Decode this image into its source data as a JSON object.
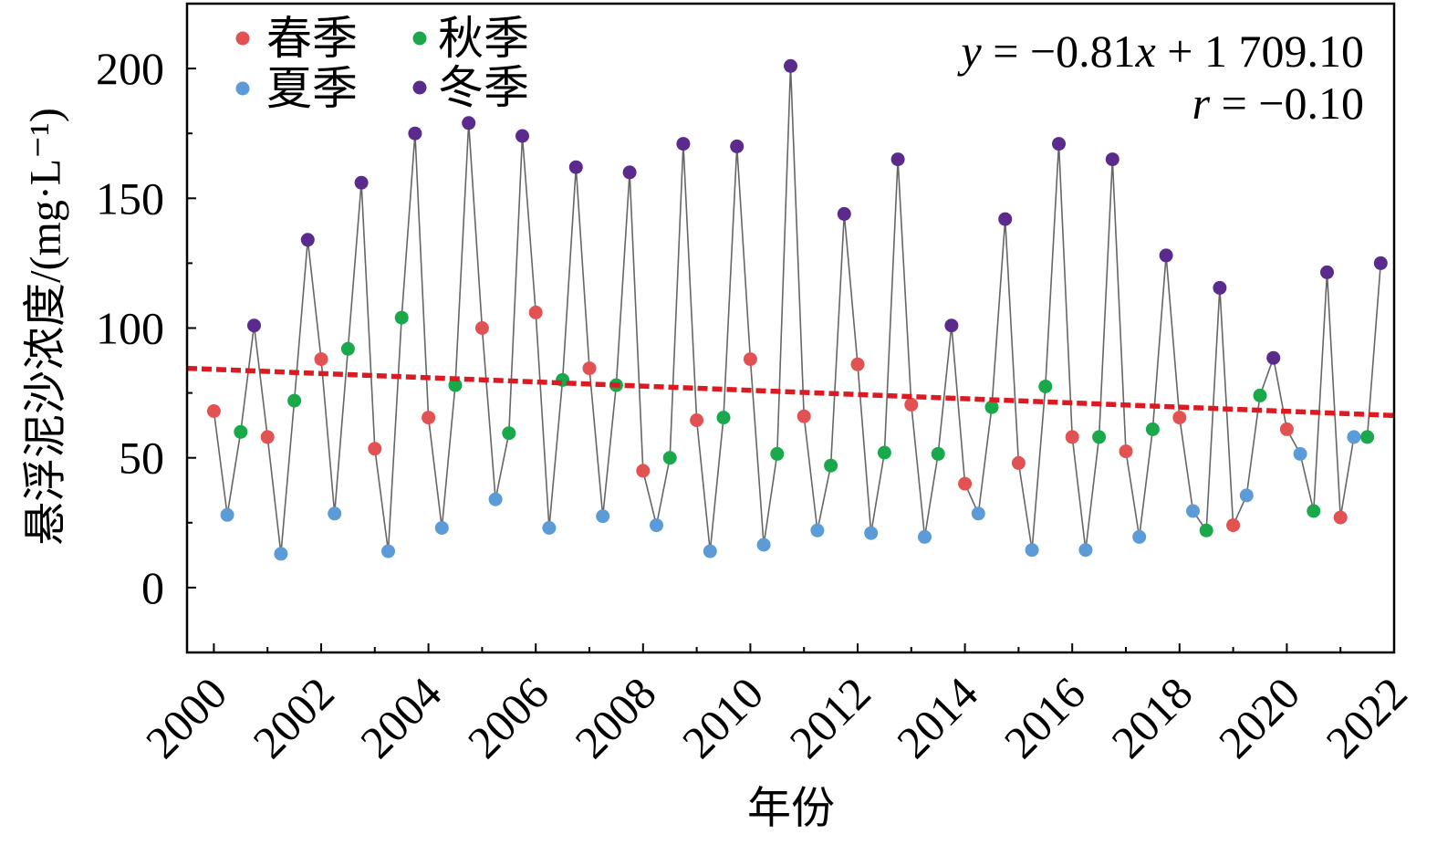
{
  "chart_data": {
    "type": "scatter",
    "xlabel": "年份",
    "ylabel": "悬浮泥沙浓度/(mg·L⁻¹)",
    "xlim": [
      1999.5,
      2022
    ],
    "ylim": [
      -25,
      225
    ],
    "xticks": [
      2000,
      2002,
      2004,
      2006,
      2008,
      2010,
      2012,
      2014,
      2016,
      2018,
      2020,
      2022
    ],
    "xticks_minor": [
      2001,
      2003,
      2005,
      2007,
      2009,
      2011,
      2013,
      2015,
      2017,
      2019,
      2021
    ],
    "yticks": [
      0,
      50,
      100,
      150,
      200
    ],
    "yticks_minor": [
      25,
      75,
      125,
      175
    ],
    "grid": false,
    "legend": {
      "placement": "top-left",
      "columns": 2
    },
    "connector_line_color": "#666666",
    "series": [
      {
        "name": "春季",
        "color": "#e25252",
        "x": [
          2000,
          2001,
          2002,
          2003,
          2004,
          2005,
          2006,
          2007,
          2008,
          2009,
          2010,
          2011,
          2012,
          2013,
          2014,
          2015,
          2016,
          2017,
          2018,
          2019,
          2020,
          2021
        ],
        "y": [
          68,
          58,
          88,
          53.5,
          65.5,
          100,
          106,
          84.5,
          45,
          64.5,
          88,
          66,
          86,
          70.5,
          40,
          48,
          58,
          52.5,
          65.5,
          24,
          61,
          27
        ]
      },
      {
        "name": "夏季",
        "color": "#5b9bd8",
        "x": [
          2000.25,
          2001.25,
          2002.25,
          2003.25,
          2004.25,
          2005.25,
          2006.25,
          2007.25,
          2008.25,
          2009.25,
          2010.25,
          2011.25,
          2012.25,
          2013.25,
          2014.25,
          2015.25,
          2016.25,
          2017.25,
          2018.25,
          2019.25,
          2020.25,
          2021.25
        ],
        "y": [
          28,
          13,
          28.5,
          14,
          23,
          34,
          23,
          27.5,
          24,
          14,
          16.5,
          22,
          21,
          19.5,
          28.5,
          14.5,
          14.5,
          19.5,
          29.5,
          35.5,
          51.5,
          58
        ]
      },
      {
        "name": "秋季",
        "color": "#1aa94a",
        "x": [
          2000.5,
          2001.5,
          2002.5,
          2003.5,
          2004.5,
          2005.5,
          2006.5,
          2007.5,
          2008.5,
          2009.5,
          2010.5,
          2011.5,
          2012.5,
          2013.5,
          2014.5,
          2015.5,
          2016.5,
          2017.5,
          2018.5,
          2019.5,
          2020.5,
          2021.5
        ],
        "y": [
          60,
          72,
          92,
          104,
          78,
          59.5,
          80,
          78,
          50,
          65.5,
          51.5,
          47,
          52,
          51.5,
          69.5,
          77.5,
          58,
          61,
          22,
          74,
          29.5,
          58
        ]
      },
      {
        "name": "冬季",
        "color": "#5a2a8c",
        "x": [
          2000.75,
          2001.75,
          2002.75,
          2003.75,
          2004.75,
          2005.75,
          2006.75,
          2007.75,
          2008.75,
          2009.75,
          2010.75,
          2011.75,
          2012.75,
          2013.75,
          2014.75,
          2015.75,
          2016.75,
          2017.75,
          2018.75,
          2019.75,
          2020.75,
          2021.75
        ],
        "y": [
          101,
          134,
          156,
          175,
          179,
          174,
          162,
          160,
          171,
          170,
          201,
          144,
          165,
          101,
          142,
          171,
          165,
          128,
          115.5,
          88.5,
          121.5,
          125
        ]
      }
    ],
    "trend_line": {
      "color": "#db1a22",
      "x": [
        1999.5,
        2022
      ],
      "y": [
        84.5,
        66.3
      ]
    },
    "annotations": {
      "equation": [
        "y",
        " = −0.81",
        "x",
        " + 1 709.10"
      ],
      "correlation": [
        "r",
        " = −0.10"
      ]
    }
  }
}
